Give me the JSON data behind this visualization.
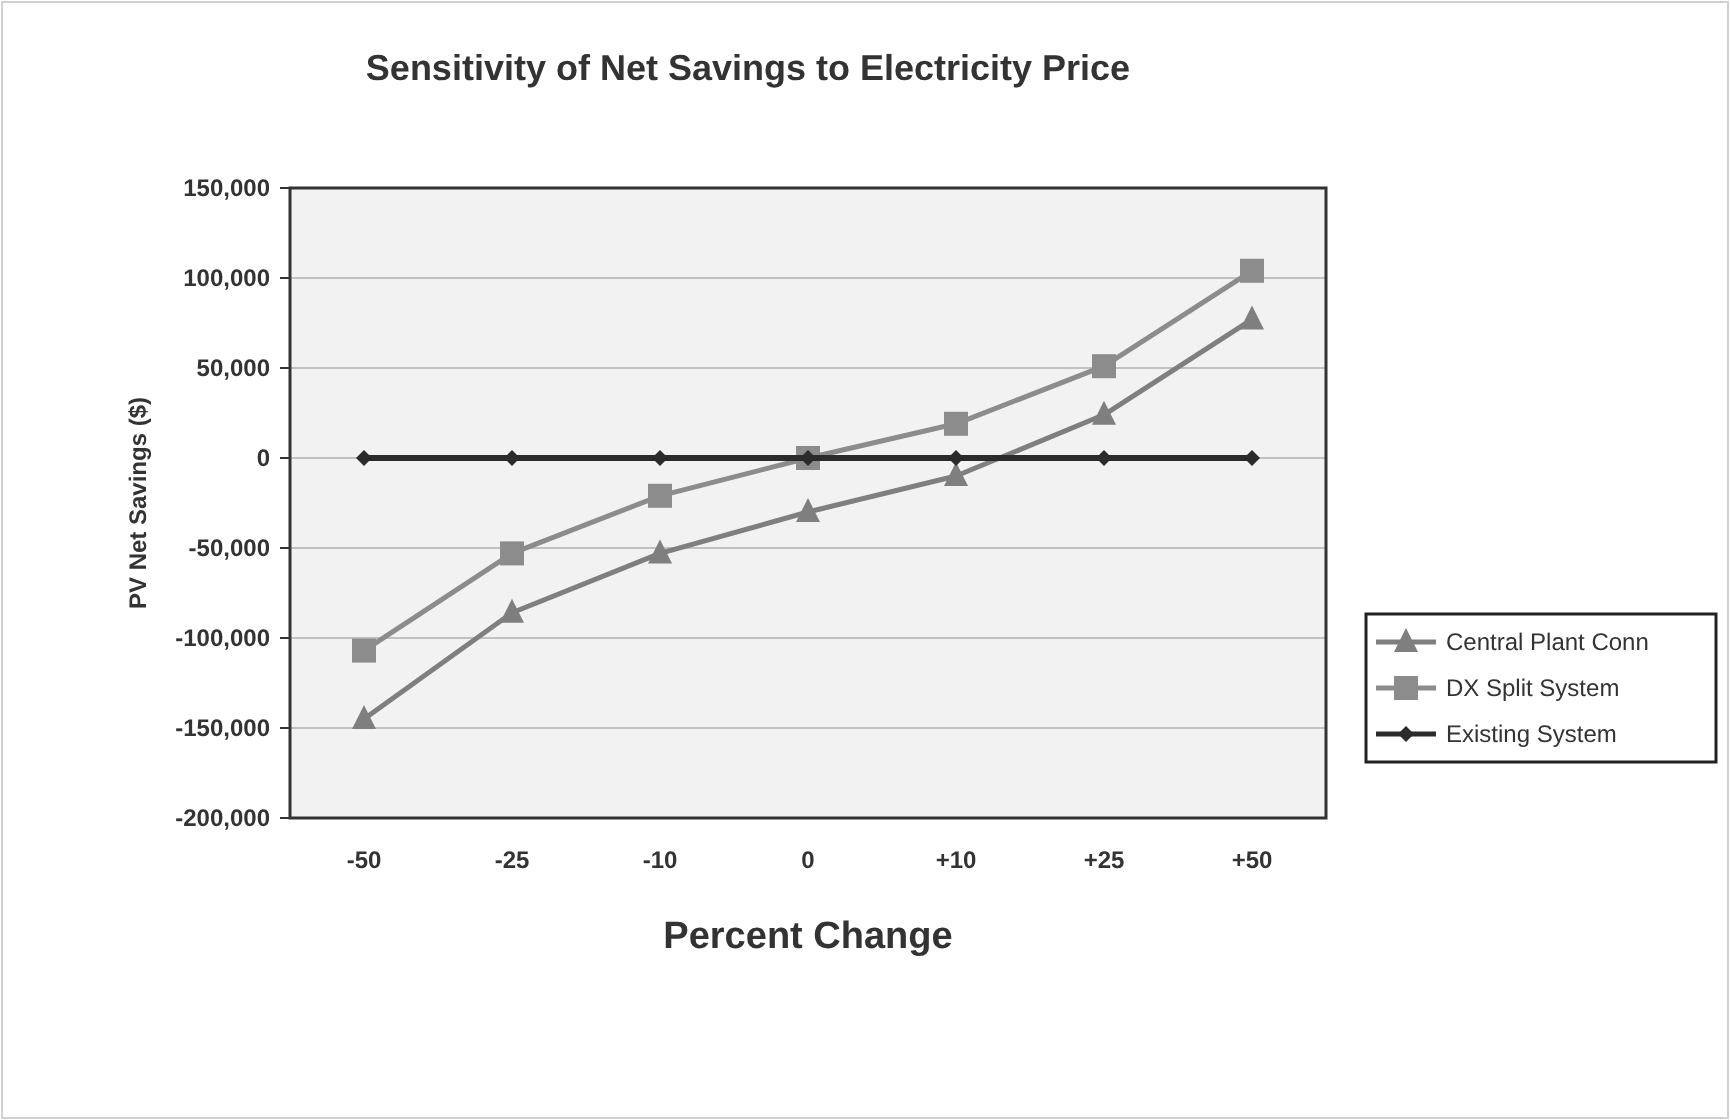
{
  "chart_data": {
    "type": "line",
    "title": "Sensitivity of Net Savings to Electricity Price",
    "xlabel": "Percent Change",
    "ylabel": "PV Net Savings ($)",
    "categories": [
      "-50",
      "-25",
      "-10",
      "0",
      "+10",
      "+25",
      "+50"
    ],
    "series": [
      {
        "name": "Central Plant Conn",
        "color": "#7f7f7f",
        "marker": "triangle",
        "values": [
          -145000,
          -86000,
          -53000,
          -30000,
          -10000,
          24000,
          77000
        ]
      },
      {
        "name": "DX Split System",
        "color": "#8c8c8c",
        "marker": "square",
        "values": [
          -107000,
          -53000,
          -21000,
          0,
          19000,
          51000,
          104000
        ]
      },
      {
        "name": "Existing System",
        "color": "#2b2b2b",
        "marker": "diamond",
        "values": [
          0,
          0,
          0,
          0,
          0,
          0,
          0
        ]
      }
    ],
    "ylim": [
      -200000,
      150000
    ],
    "yticks": [
      {
        "value": -200000,
        "label": "-200,000"
      },
      {
        "value": -150000,
        "label": "-150,000"
      },
      {
        "value": -100000,
        "label": "-100,000"
      },
      {
        "value": -50000,
        "label": "-50,000"
      },
      0,
      {
        "value": 50000,
        "label": "50,000"
      },
      {
        "value": 100000,
        "label": "100,000"
      },
      {
        "value": 150000,
        "label": "150,000"
      }
    ],
    "grid": "y",
    "legend": "right",
    "line_style": "solid"
  }
}
